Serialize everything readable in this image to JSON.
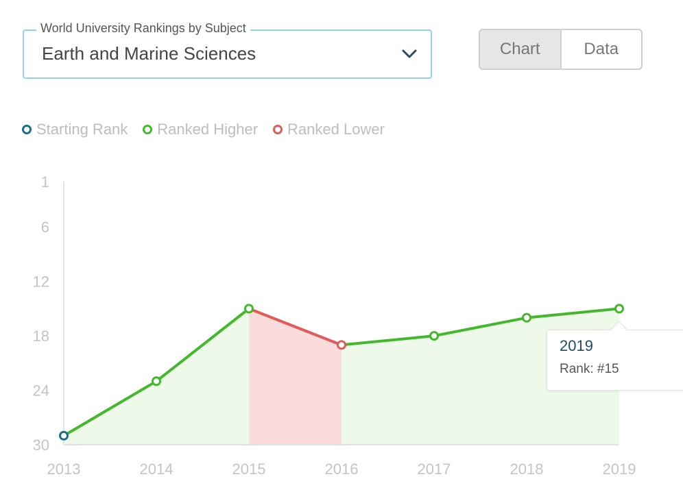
{
  "selector": {
    "legend": "World University Rankings by Subject",
    "value": "Earth and Marine Sciences",
    "icon": "chevron-down-icon"
  },
  "view_toggle": {
    "chart_label": "Chart",
    "data_label": "Data",
    "active": "Chart"
  },
  "legend": [
    {
      "label": "Starting Rank",
      "color": "#1a6f8f"
    },
    {
      "label": "Ranked Higher",
      "color": "#43b82c"
    },
    {
      "label": "Ranked Lower",
      "color": "#e35a5a"
    }
  ],
  "tooltip": {
    "year": "2019",
    "rank_text": "Rank: #15"
  },
  "chart_data": {
    "type": "line",
    "x": [
      "2013",
      "2014",
      "2015",
      "2016",
      "2017",
      "2018",
      "2019"
    ],
    "series": [
      {
        "values": [
          29,
          23,
          15,
          19,
          18,
          16,
          15
        ]
      }
    ],
    "point_status": [
      "start",
      "higher",
      "higher",
      "lower",
      "higher",
      "higher",
      "higher"
    ],
    "y_ticks": [
      1,
      6,
      12,
      18,
      24,
      30
    ],
    "ylim": [
      1,
      30
    ],
    "y_inverted": true,
    "grid": false
  }
}
